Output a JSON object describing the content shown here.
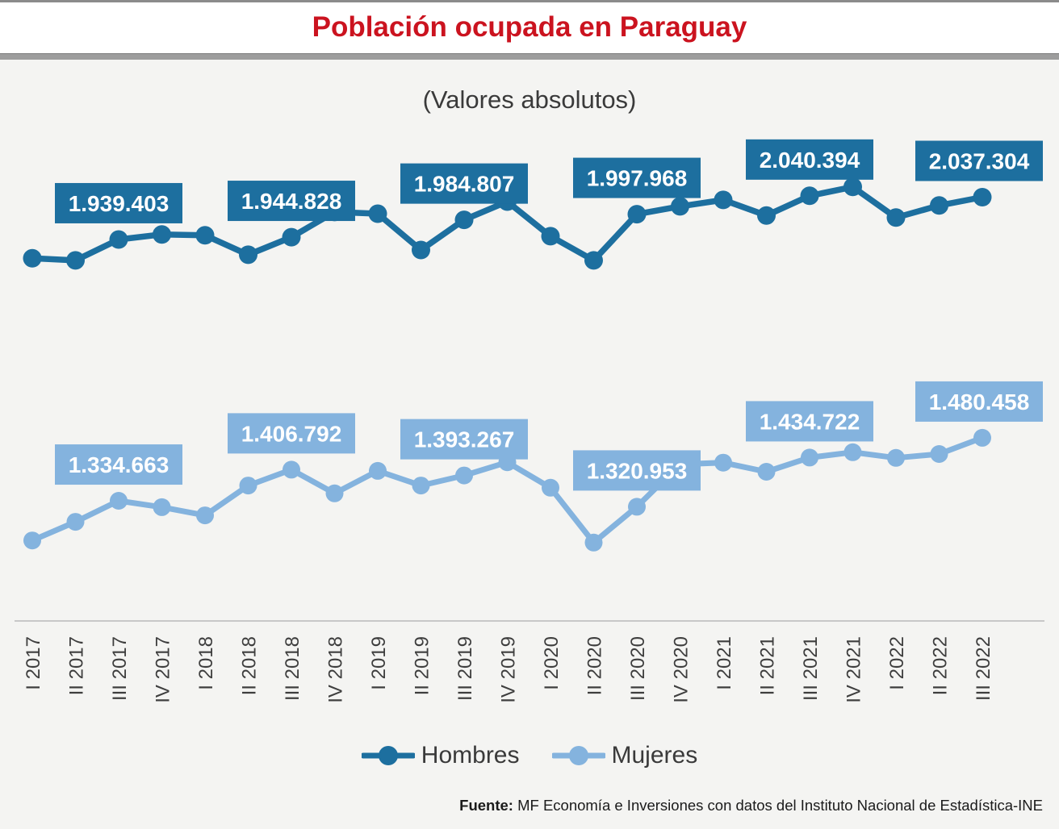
{
  "header": {
    "title": "Población ocupada en Paraguay"
  },
  "chart_data": {
    "type": "line",
    "title": "Población ocupada en Paraguay",
    "subtitle": "(Valores absolutos)",
    "x_categories": [
      "I 2017",
      "II 2017",
      "III 2017",
      "IV 2017",
      "I 2018",
      "II 2018",
      "III 2018",
      "IV 2018",
      "I 2019",
      "II 2019",
      "III 2019",
      "IV 2019",
      "I 2020",
      "II 2020",
      "III 2020",
      "IV 2020",
      "I 2021",
      "II 2021",
      "III 2021",
      "IV 2021",
      "I 2022",
      "II 2022",
      "III 2022"
    ],
    "series": [
      {
        "name": "Hombres",
        "color": "#1d6f9f",
        "values": [
          1896000,
          1891000,
          1939403,
          1951000,
          1949000,
          1904000,
          1944828,
          2003000,
          1999000,
          1915000,
          1984807,
          2027000,
          1947000,
          1891000,
          1997968,
          2016000,
          2031000,
          1995000,
          2040394,
          2061000,
          1990000,
          2018000,
          2037304
        ],
        "data_labels": [
          {
            "index": 2,
            "text": "1.939.403"
          },
          {
            "index": 6,
            "text": "1.944.828"
          },
          {
            "index": 10,
            "text": "1.984.807"
          },
          {
            "index": 14,
            "text": "1.997.968"
          },
          {
            "index": 18,
            "text": "2.040.394"
          },
          {
            "index": 22,
            "text": "2.037.304"
          }
        ]
      },
      {
        "name": "Mujeres",
        "color": "#84b3de",
        "values": [
          1243000,
          1286000,
          1334663,
          1320000,
          1301000,
          1370000,
          1406792,
          1352000,
          1404000,
          1370000,
          1393267,
          1424000,
          1365000,
          1238000,
          1320953,
          1419000,
          1423000,
          1402000,
          1434722,
          1447000,
          1434000,
          1443000,
          1480458
        ],
        "data_labels": [
          {
            "index": 2,
            "text": "1.334.663"
          },
          {
            "index": 6,
            "text": "1.406.792"
          },
          {
            "index": 10,
            "text": "1.393.267"
          },
          {
            "index": 14,
            "text": "1.320.953"
          },
          {
            "index": 18,
            "text": "1.434.722"
          },
          {
            "index": 22,
            "text": "1.480.458"
          }
        ]
      }
    ],
    "legend_position": "bottom-center",
    "grid": false,
    "y_axis_visible": false,
    "x_axis_label_rotation": -90,
    "note": "Quarterly employed population; data labels shown on each third quarter"
  },
  "footer": {
    "source_label": "Fuente:",
    "source_text": " MF Economía e Inversiones con datos del Instituto Nacional de Estadística-INE"
  },
  "colors": {
    "title_red": "#cb131f",
    "background": "#f4f4f2",
    "axis_line": "#c8c8c8",
    "hombres": "#1d6f9f",
    "mujeres": "#84b3de"
  }
}
